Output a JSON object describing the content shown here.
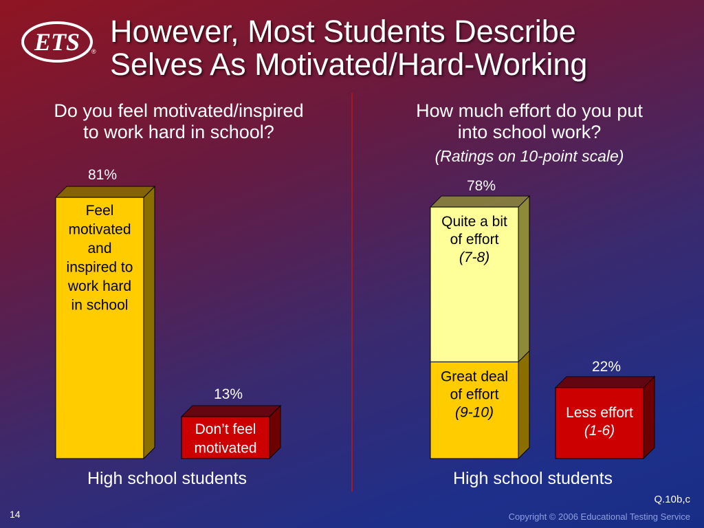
{
  "logo": {
    "text": "ETS",
    "mark": "®"
  },
  "title": {
    "line1": "However, Most Students Describe",
    "line2": "Selves As Motivated/Hard-Working"
  },
  "left_panel": {
    "question_line1": "Do you feel motivated/inspired",
    "question_line2": "to work hard in school?",
    "xlabel": "High school students"
  },
  "right_panel": {
    "question_line1": "How much effort do you put",
    "question_line2": "into school work?",
    "subnote": "(Ratings on 10-point scale)",
    "xlabel": "High school students"
  },
  "colors": {
    "gold": "#ffcc00",
    "gold_side": "#8a6f00",
    "light_yellow": "#ffff99",
    "light_yellow_side": "#8f8a3a",
    "red": "#cc0000",
    "red_side": "#6e0000",
    "divider": "#a01a24"
  },
  "chart_data": [
    {
      "type": "bar",
      "ylim": [
        0,
        100
      ],
      "bars": [
        {
          "name": "Feel motivated and inspired to work hard in school",
          "value": 81,
          "value_label": "81%",
          "label_lines": [
            "Feel",
            "motivated",
            "and",
            "inspired to",
            "work hard",
            "in school"
          ],
          "color": "gold"
        },
        {
          "name": "Don’t feel motivated",
          "value": 13,
          "value_label": "13%",
          "label_lines": [
            "Don’t feel",
            "motivated"
          ],
          "color": "red"
        }
      ],
      "xlabel": "High school students"
    },
    {
      "type": "bar",
      "ylim": [
        0,
        100
      ],
      "stacked": true,
      "bars": [
        {
          "total_label": "78%",
          "segments": [
            {
              "name": "Great deal of effort (9-10)",
              "value": 30,
              "label_lines": [
                "Great deal",
                "of effort"
              ],
              "italic": "(9-10)",
              "color": "gold"
            },
            {
              "name": "Quite a bit of effort (7-8)",
              "value": 48,
              "label_lines": [
                "Quite a bit",
                "of effort"
              ],
              "italic": "(7-8)",
              "color": "light_yellow"
            }
          ]
        },
        {
          "total_label": "22%",
          "segments": [
            {
              "name": "Less effort (1-6)",
              "value": 22,
              "label_lines": [
                "Less effort"
              ],
              "italic": "(1-6)",
              "color": "red"
            }
          ]
        }
      ],
      "xlabel": "High school students"
    }
  ],
  "footer": {
    "qref": "Q.10b,c",
    "slide_number": "14",
    "copyright": "Copyright © 2006 Educational Testing Service"
  }
}
